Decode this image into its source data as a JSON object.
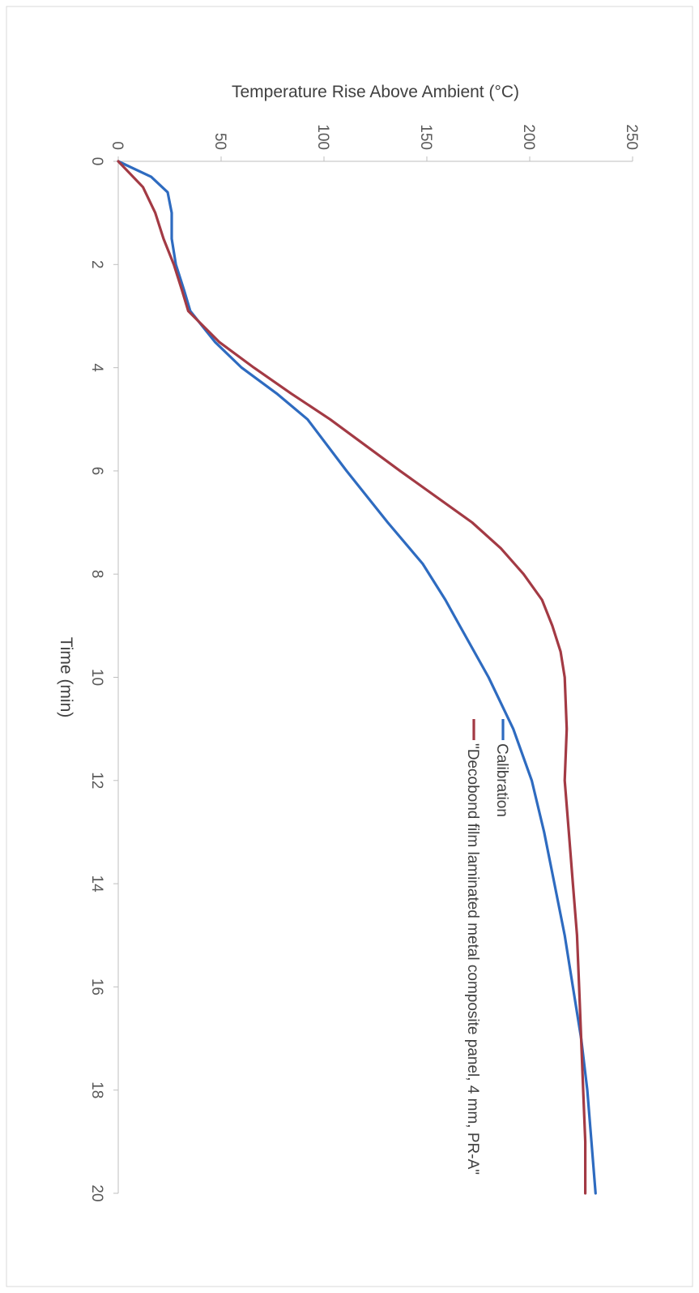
{
  "chart_data": {
    "type": "line",
    "orientation": "rotated-90-clockwise",
    "xlabel": "Time (min)",
    "ylabel": "Temperature Rise Above Ambient (°C)",
    "xlim": [
      0,
      20
    ],
    "ylim": [
      0,
      250
    ],
    "x_ticks": [
      "0",
      "2",
      "4",
      "6",
      "8",
      "10",
      "12",
      "14",
      "16",
      "18",
      "20"
    ],
    "y_ticks": [
      "0",
      "50",
      "100",
      "150",
      "200",
      "250"
    ],
    "grid": false,
    "legend_placement": "center-right",
    "series": [
      {
        "name": "Calibration",
        "color": "#2e6bc0",
        "points": [
          [
            0,
            0
          ],
          [
            0.3,
            16
          ],
          [
            0.6,
            24
          ],
          [
            1,
            26
          ],
          [
            1.5,
            26
          ],
          [
            2,
            28
          ],
          [
            2.5,
            32
          ],
          [
            2.9,
            35
          ],
          [
            3.5,
            47
          ],
          [
            4,
            60
          ],
          [
            4.5,
            77
          ],
          [
            5,
            92
          ],
          [
            6,
            111
          ],
          [
            7,
            131
          ],
          [
            7.8,
            148
          ],
          [
            8.5,
            159
          ],
          [
            9,
            166
          ],
          [
            10,
            180
          ],
          [
            11,
            192
          ],
          [
            12,
            201
          ],
          [
            13,
            207
          ],
          [
            14,
            212
          ],
          [
            15,
            217
          ],
          [
            16,
            221
          ],
          [
            17,
            225
          ],
          [
            18,
            228
          ],
          [
            19,
            230
          ],
          [
            20,
            232
          ]
        ]
      },
      {
        "name": "\"Decobond film laminated metal composite panel, 4 mm, PR-A\"",
        "color": "#a33a44",
        "points": [
          [
            0,
            0
          ],
          [
            0.5,
            12
          ],
          [
            1,
            18
          ],
          [
            1.5,
            22
          ],
          [
            2,
            27
          ],
          [
            2.5,
            31
          ],
          [
            2.9,
            34
          ],
          [
            3.5,
            49
          ],
          [
            4,
            66
          ],
          [
            4.5,
            84
          ],
          [
            5,
            103
          ],
          [
            6,
            137
          ],
          [
            7,
            172
          ],
          [
            7.5,
            186
          ],
          [
            8,
            197
          ],
          [
            8.5,
            206
          ],
          [
            9,
            211
          ],
          [
            9.5,
            215
          ],
          [
            10,
            217
          ],
          [
            11,
            218
          ],
          [
            12,
            217
          ],
          [
            13,
            219
          ],
          [
            14,
            221
          ],
          [
            15,
            223
          ],
          [
            16,
            224
          ],
          [
            17,
            225
          ],
          [
            18,
            226
          ],
          [
            19,
            227
          ],
          [
            20,
            227
          ]
        ]
      }
    ]
  }
}
